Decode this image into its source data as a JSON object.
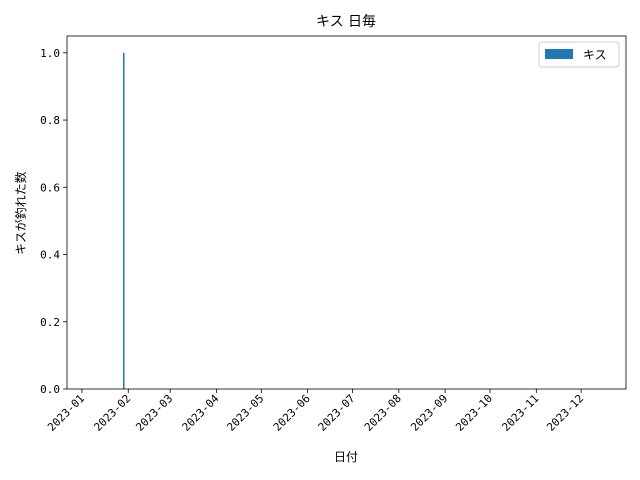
{
  "chart_data": {
    "type": "bar",
    "title": "キス 日毎",
    "xlabel": "日付",
    "ylabel": "キスが釣れた数",
    "x_axis": {
      "kind": "date",
      "range": [
        "2022-12-22",
        "2023-12-31"
      ],
      "tick_labels": [
        "2023-01",
        "2023-02",
        "2023-03",
        "2023-04",
        "2023-05",
        "2023-06",
        "2023-07",
        "2023-08",
        "2023-09",
        "2023-10",
        "2023-11",
        "2023-12"
      ],
      "tick_dates": [
        "2023-01-01",
        "2023-02-01",
        "2023-03-01",
        "2023-04-01",
        "2023-05-01",
        "2023-06-01",
        "2023-07-01",
        "2023-08-01",
        "2023-09-01",
        "2023-10-01",
        "2023-11-01",
        "2023-12-01"
      ]
    },
    "ylim": [
      0,
      1.05
    ],
    "y_ticks": [
      "0.0",
      "0.2",
      "0.4",
      "0.6",
      "0.8",
      "1.0"
    ],
    "y_tick_values": [
      0,
      0.2,
      0.4,
      0.6,
      0.8,
      1.0
    ],
    "series": [
      {
        "name": "キス",
        "color": "#1f77b4",
        "points": [
          {
            "x": "2023-01-29",
            "y": 1
          }
        ]
      }
    ],
    "legend": {
      "position": "top-right",
      "label": "キス"
    },
    "grid": false
  }
}
